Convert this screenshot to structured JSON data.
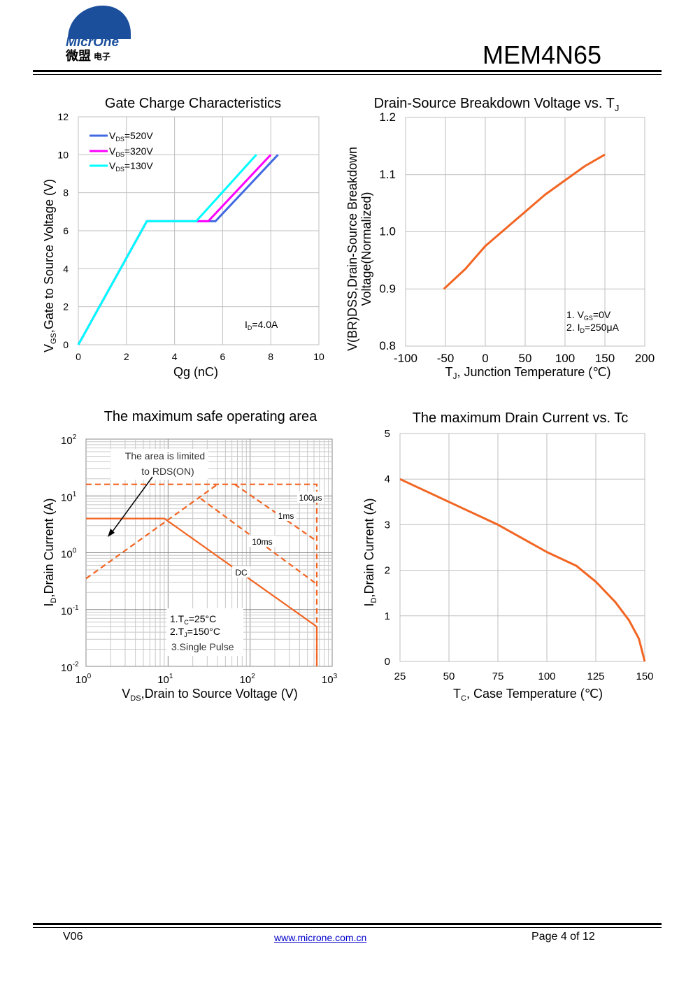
{
  "header": {
    "logo_text": "MicrOne",
    "logo_cn": "微盟",
    "logo_cn_small": "电子",
    "part_number": "MEM4N65",
    "logo_colors": {
      "blue": "#1b4f9c",
      "white": "#ffffff"
    }
  },
  "footer": {
    "version": "V06",
    "website": "www.microne.com.cn",
    "page": "Page 4 of 12"
  },
  "chart_data": [
    {
      "id": "gate-charge",
      "type": "line",
      "title": "Gate Charge Characteristics",
      "xlabel": "Qg  (nC)",
      "ylabel": "V_GS,Gate to Source Voltage (V)",
      "xlim": [
        0,
        10
      ],
      "ylim": [
        0,
        12
      ],
      "xticks": [
        0,
        2,
        4,
        6,
        8,
        10
      ],
      "yticks": [
        0,
        2,
        4,
        6,
        8,
        10,
        12
      ],
      "grid": true,
      "legend": "top-left",
      "annotation": "I_D=4.0A",
      "series": [
        {
          "name": "V_DS=520V",
          "color": "#4169e1",
          "x": [
            0,
            2.85,
            5.7,
            8.3
          ],
          "y": [
            0,
            6.5,
            6.5,
            10
          ]
        },
        {
          "name": "V_DS=320V",
          "color": "#ff00ff",
          "x": [
            0,
            2.85,
            5.4,
            8.0
          ],
          "y": [
            0,
            6.5,
            6.5,
            10
          ]
        },
        {
          "name": "V_DS=130V",
          "color": "#00ffff",
          "x": [
            0,
            2.85,
            4.9,
            7.4
          ],
          "y": [
            0,
            6.5,
            6.5,
            10
          ]
        }
      ]
    },
    {
      "id": "breakdown",
      "type": "line",
      "title": "Drain-Source Breakdown Voltage vs. T_J",
      "xlabel": "T_J, Junction Temperature  (℃)",
      "ylabel_line1": "V(BR)DSS,Drain-Source Breakdown",
      "ylabel_line2": "Voltage(Normalized)",
      "xlim": [
        -100,
        200
      ],
      "ylim": [
        0.8,
        1.2
      ],
      "xticks": [
        -100,
        -50,
        0,
        50,
        100,
        150,
        200
      ],
      "yticks": [
        0.8,
        0.9,
        1.0,
        1.1,
        1.2
      ],
      "grid": true,
      "notes": [
        "1. V_GS=0V",
        "2. I_D=250μA"
      ],
      "series": [
        {
          "color": "#f26522",
          "x": [
            -52,
            -25,
            0,
            25,
            50,
            75,
            100,
            125,
            150
          ],
          "y": [
            0.9,
            0.935,
            0.975,
            1.005,
            1.035,
            1.065,
            1.09,
            1.115,
            1.135
          ]
        }
      ]
    },
    {
      "id": "soa",
      "type": "line",
      "title": "The maximum safe operating area",
      "xlabel": "V_DS,Drain to Source Voltage (V)",
      "ylabel": "I_D,Drain Current (A)",
      "xscale": "log",
      "yscale": "log",
      "xlim": [
        1,
        1000
      ],
      "ylim": [
        0.01,
        100
      ],
      "xticks": [
        "10^0",
        "10^1",
        "10^2",
        "10^3"
      ],
      "yticks": [
        "10^-2",
        "10^-1",
        "10^0",
        "10^1",
        "10^2"
      ],
      "grid": true,
      "annotations": [
        "The area is limited",
        "to RDS(ON)",
        "100μs",
        "1ms",
        "10ms",
        "DC"
      ],
      "notes": [
        "1.T_C=25°C",
        "2.T_J=150°C",
        "3.Single Pulse"
      ],
      "series": [
        {
          "name": "DC",
          "style": "solid",
          "color": "#f26522",
          "x": [
            1,
            9,
            650,
            650
          ],
          "y": [
            4,
            4,
            0.05,
            0.01
          ]
        },
        {
          "name": "100μs",
          "style": "dashed",
          "color": "#f26522",
          "x": [
            1,
            650,
            650
          ],
          "y": [
            16,
            16,
            0.01
          ]
        },
        {
          "name": "1ms",
          "style": "dashed",
          "color": "#f26522",
          "x": [
            65,
            650
          ],
          "y": [
            16,
            1.6
          ]
        },
        {
          "name": "10ms",
          "style": "dashed",
          "color": "#f26522",
          "x": [
            25,
            650
          ],
          "y": [
            9,
            0.28
          ]
        },
        {
          "name": "RDS(ON) limit",
          "style": "dashed",
          "color": "#f26522",
          "x": [
            1,
            40
          ],
          "y": [
            0.35,
            16
          ]
        }
      ]
    },
    {
      "id": "max-current",
      "type": "line",
      "title": "The maximum Drain Current vs. Tc",
      "xlabel": "T_C, Case Temperature (℃)",
      "ylabel": "I_D,Drain Current (A)",
      "xlim": [
        25,
        150
      ],
      "ylim": [
        0,
        5
      ],
      "xticks": [
        25,
        50,
        75,
        100,
        125,
        150
      ],
      "yticks": [
        0,
        1,
        2,
        3,
        4,
        5
      ],
      "grid": true,
      "series": [
        {
          "color": "#f26522",
          "x": [
            25,
            50,
            75,
            100,
            115,
            125,
            135,
            142,
            147,
            150
          ],
          "y": [
            4.0,
            3.5,
            3.0,
            2.4,
            2.1,
            1.75,
            1.3,
            0.9,
            0.5,
            0
          ]
        }
      ]
    }
  ]
}
